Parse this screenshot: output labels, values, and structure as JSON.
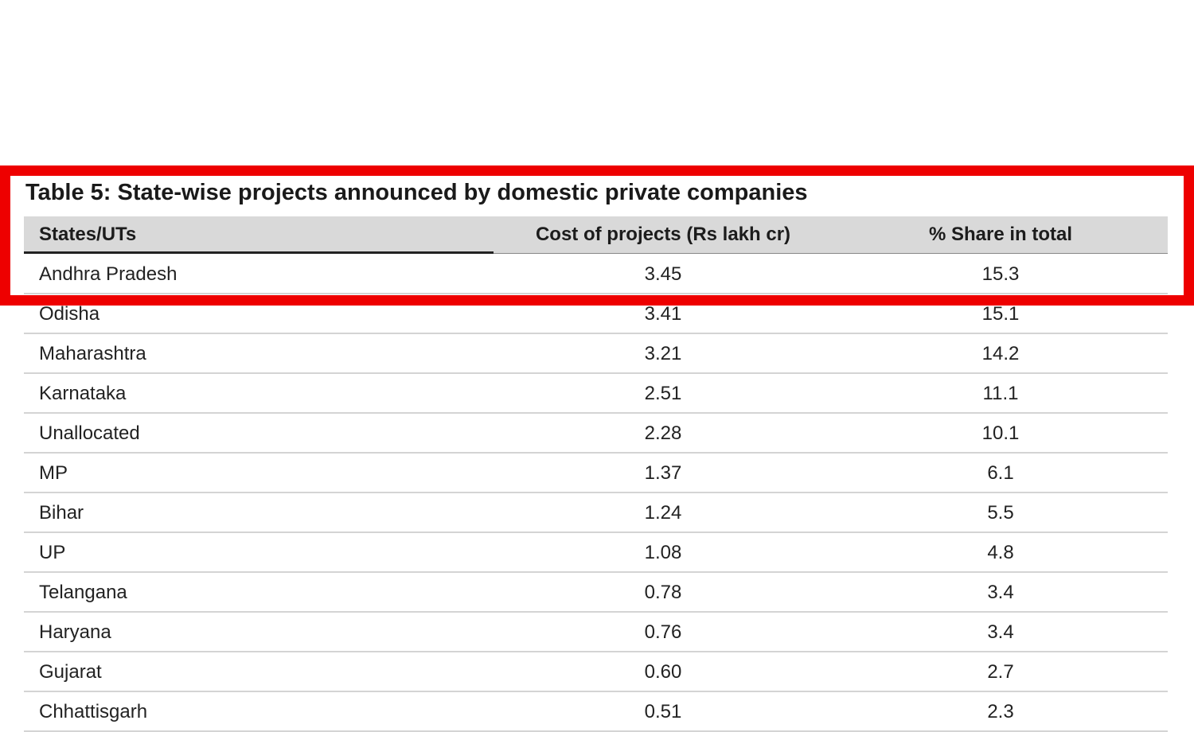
{
  "table": {
    "title": "Table 5: State-wise projects announced by domestic private companies",
    "headers": [
      "States/UTs",
      "Cost of projects (Rs lakh cr)",
      "% Share in total"
    ],
    "rows": [
      [
        "Andhra Pradesh",
        "3.45",
        "15.3"
      ],
      [
        "Odisha",
        "3.41",
        "15.1"
      ],
      [
        "Maharashtra",
        "3.21",
        "14.2"
      ],
      [
        "Karnataka",
        "2.51",
        "11.1"
      ],
      [
        "Unallocated",
        "2.28",
        "10.1"
      ],
      [
        "MP",
        "1.37",
        "6.1"
      ],
      [
        "Bihar",
        "1.24",
        "5.5"
      ],
      [
        "UP",
        "1.08",
        "4.8"
      ],
      [
        "Telangana",
        "0.78",
        "3.4"
      ],
      [
        "Haryana",
        "0.76",
        "3.4"
      ],
      [
        "Gujarat",
        "0.60",
        "2.7"
      ],
      [
        "Chhattisgarh",
        "0.51",
        "2.3"
      ]
    ]
  }
}
